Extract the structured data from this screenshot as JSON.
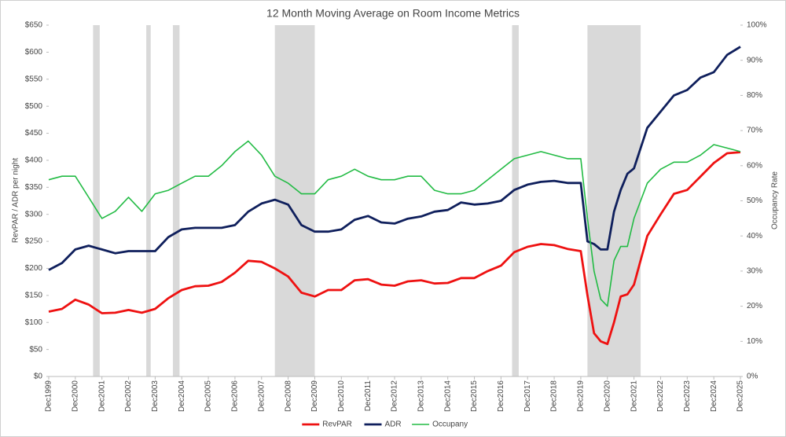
{
  "chart_data": {
    "type": "line",
    "title": "12 Month Moving Average on Room Income Metrics",
    "y_label": "RevPAR / ADR per night",
    "y2_label": "Occupancy Rate",
    "x": [
      "1999-12",
      "2000-06",
      "2000-12",
      "2001-06",
      "2001-12",
      "2002-06",
      "2002-12",
      "2003-06",
      "2003-12",
      "2004-06",
      "2004-12",
      "2005-06",
      "2005-12",
      "2006-06",
      "2006-12",
      "2007-06",
      "2007-12",
      "2008-06",
      "2008-12",
      "2009-06",
      "2009-12",
      "2010-06",
      "2010-12",
      "2011-06",
      "2011-12",
      "2012-06",
      "2012-12",
      "2013-06",
      "2013-12",
      "2014-06",
      "2014-12",
      "2015-06",
      "2015-12",
      "2016-06",
      "2016-12",
      "2017-06",
      "2017-12",
      "2018-06",
      "2018-12",
      "2019-06",
      "2019-12",
      "2020-03",
      "2020-06",
      "2020-09",
      "2020-12",
      "2021-03",
      "2021-06",
      "2021-09",
      "2021-12",
      "2022-06",
      "2022-12",
      "2023-06",
      "2023-12",
      "2024-06",
      "2024-12",
      "2025-06",
      "2025-12"
    ],
    "series": [
      {
        "name": "RevPAR",
        "color": "#ee1111",
        "axis": "y",
        "values": [
          120,
          125,
          142,
          133,
          117,
          118,
          123,
          118,
          125,
          145,
          160,
          167,
          168,
          175,
          192,
          214,
          212,
          200,
          185,
          155,
          148,
          160,
          160,
          178,
          180,
          170,
          168,
          176,
          178,
          172,
          173,
          182,
          182,
          195,
          205,
          230,
          240,
          245,
          243,
          236,
          232,
          150,
          80,
          65,
          60,
          100,
          148,
          152,
          170,
          260,
          300,
          338,
          345,
          370,
          395,
          413,
          415
        ]
      },
      {
        "name": "ADR",
        "color": "#0f1f5c",
        "axis": "y",
        "values": [
          197,
          210,
          235,
          242,
          235,
          228,
          232,
          232,
          232,
          258,
          272,
          275,
          275,
          275,
          280,
          305,
          320,
          327,
          318,
          280,
          268,
          268,
          272,
          290,
          297,
          285,
          283,
          292,
          296,
          305,
          308,
          322,
          318,
          320,
          325,
          345,
          355,
          360,
          362,
          358,
          358,
          250,
          245,
          235,
          235,
          305,
          345,
          375,
          385,
          460,
          490,
          520,
          530,
          553,
          563,
          595,
          610
        ]
      },
      {
        "name": "Occupany",
        "color": "#22bb44",
        "axis": "y2",
        "values": [
          56,
          57,
          57,
          51,
          45,
          47,
          51,
          47,
          52,
          53,
          55,
          57,
          57,
          60,
          64,
          67,
          63,
          57,
          55,
          52,
          52,
          56,
          57,
          59,
          57,
          56,
          56,
          57,
          57,
          53,
          52,
          52,
          53,
          56,
          59,
          62,
          63,
          64,
          63,
          62,
          62,
          45,
          30,
          22,
          20,
          33,
          37,
          37,
          45,
          55,
          59,
          61,
          61,
          63,
          66,
          65,
          64
        ]
      }
    ],
    "shaded_periods": [
      [
        "2001-08",
        "2001-11"
      ],
      [
        "2003-08",
        "2003-10"
      ],
      [
        "2004-08",
        "2004-11"
      ],
      [
        "2008-06",
        "2009-12"
      ],
      [
        "2017-05",
        "2017-08"
      ],
      [
        "2020-03",
        "2022-03"
      ]
    ],
    "xlim": [
      "1999-12",
      "2025-12"
    ],
    "xticks": [
      {
        "value": "1999-12",
        "label": "Dec1999"
      },
      {
        "value": "2000-12",
        "label": "Dec2000"
      },
      {
        "value": "2001-12",
        "label": "Dec2001"
      },
      {
        "value": "2002-12",
        "label": "Dec2002"
      },
      {
        "value": "2003-12",
        "label": "Dec2003"
      },
      {
        "value": "2004-12",
        "label": "Dec2004"
      },
      {
        "value": "2005-12",
        "label": "Dec2005"
      },
      {
        "value": "2006-12",
        "label": "Dec2006"
      },
      {
        "value": "2007-12",
        "label": "Dec2007"
      },
      {
        "value": "2008-12",
        "label": "Dec2008"
      },
      {
        "value": "2009-12",
        "label": "Dec2009"
      },
      {
        "value": "2010-12",
        "label": "Dec2010"
      },
      {
        "value": "2011-12",
        "label": "Dec2011"
      },
      {
        "value": "2012-12",
        "label": "Dec2012"
      },
      {
        "value": "2013-12",
        "label": "Dec2013"
      },
      {
        "value": "2014-12",
        "label": "Dec2014"
      },
      {
        "value": "2015-12",
        "label": "Dec2015"
      },
      {
        "value": "2016-12",
        "label": "Dec2016"
      },
      {
        "value": "2017-12",
        "label": "Dec2017"
      },
      {
        "value": "2018-12",
        "label": "Dec2018"
      },
      {
        "value": "2019-12",
        "label": "Dec2019"
      },
      {
        "value": "2020-12",
        "label": "Dec2020"
      },
      {
        "value": "2021-12",
        "label": "Dec2021"
      },
      {
        "value": "2022-12",
        "label": "Dec2022"
      },
      {
        "value": "2023-12",
        "label": "Dec2023"
      },
      {
        "value": "2024-12",
        "label": "Dec2024"
      },
      {
        "value": "2025-12",
        "label": "Dec2025"
      }
    ],
    "ylim": [
      0,
      650
    ],
    "yticks": [
      {
        "value": 0,
        "label": "$0"
      },
      {
        "value": 50,
        "label": "$50"
      },
      {
        "value": 100,
        "label": "$100"
      },
      {
        "value": 150,
        "label": "$150"
      },
      {
        "value": 200,
        "label": "$200"
      },
      {
        "value": 250,
        "label": "$250"
      },
      {
        "value": 300,
        "label": "$300"
      },
      {
        "value": 350,
        "label": "$350"
      },
      {
        "value": 400,
        "label": "$400"
      },
      {
        "value": 450,
        "label": "$450"
      },
      {
        "value": 500,
        "label": "$500"
      },
      {
        "value": 550,
        "label": "$550"
      },
      {
        "value": 600,
        "label": "$600"
      },
      {
        "value": 650,
        "label": "$650"
      }
    ],
    "y2lim": [
      0,
      100
    ],
    "y2ticks": [
      {
        "value": 0,
        "label": "0%"
      },
      {
        "value": 10,
        "label": "10%"
      },
      {
        "value": 20,
        "label": "20%"
      },
      {
        "value": 30,
        "label": "30%"
      },
      {
        "value": 40,
        "label": "40%"
      },
      {
        "value": 50,
        "label": "50%"
      },
      {
        "value": 60,
        "label": "60%"
      },
      {
        "value": 70,
        "label": "70%"
      },
      {
        "value": 80,
        "label": "80%"
      },
      {
        "value": 90,
        "label": "90%"
      },
      {
        "value": 100,
        "label": "100%"
      }
    ],
    "shade_color": "#d9d9d9",
    "grid": false,
    "legend": "bottom"
  }
}
